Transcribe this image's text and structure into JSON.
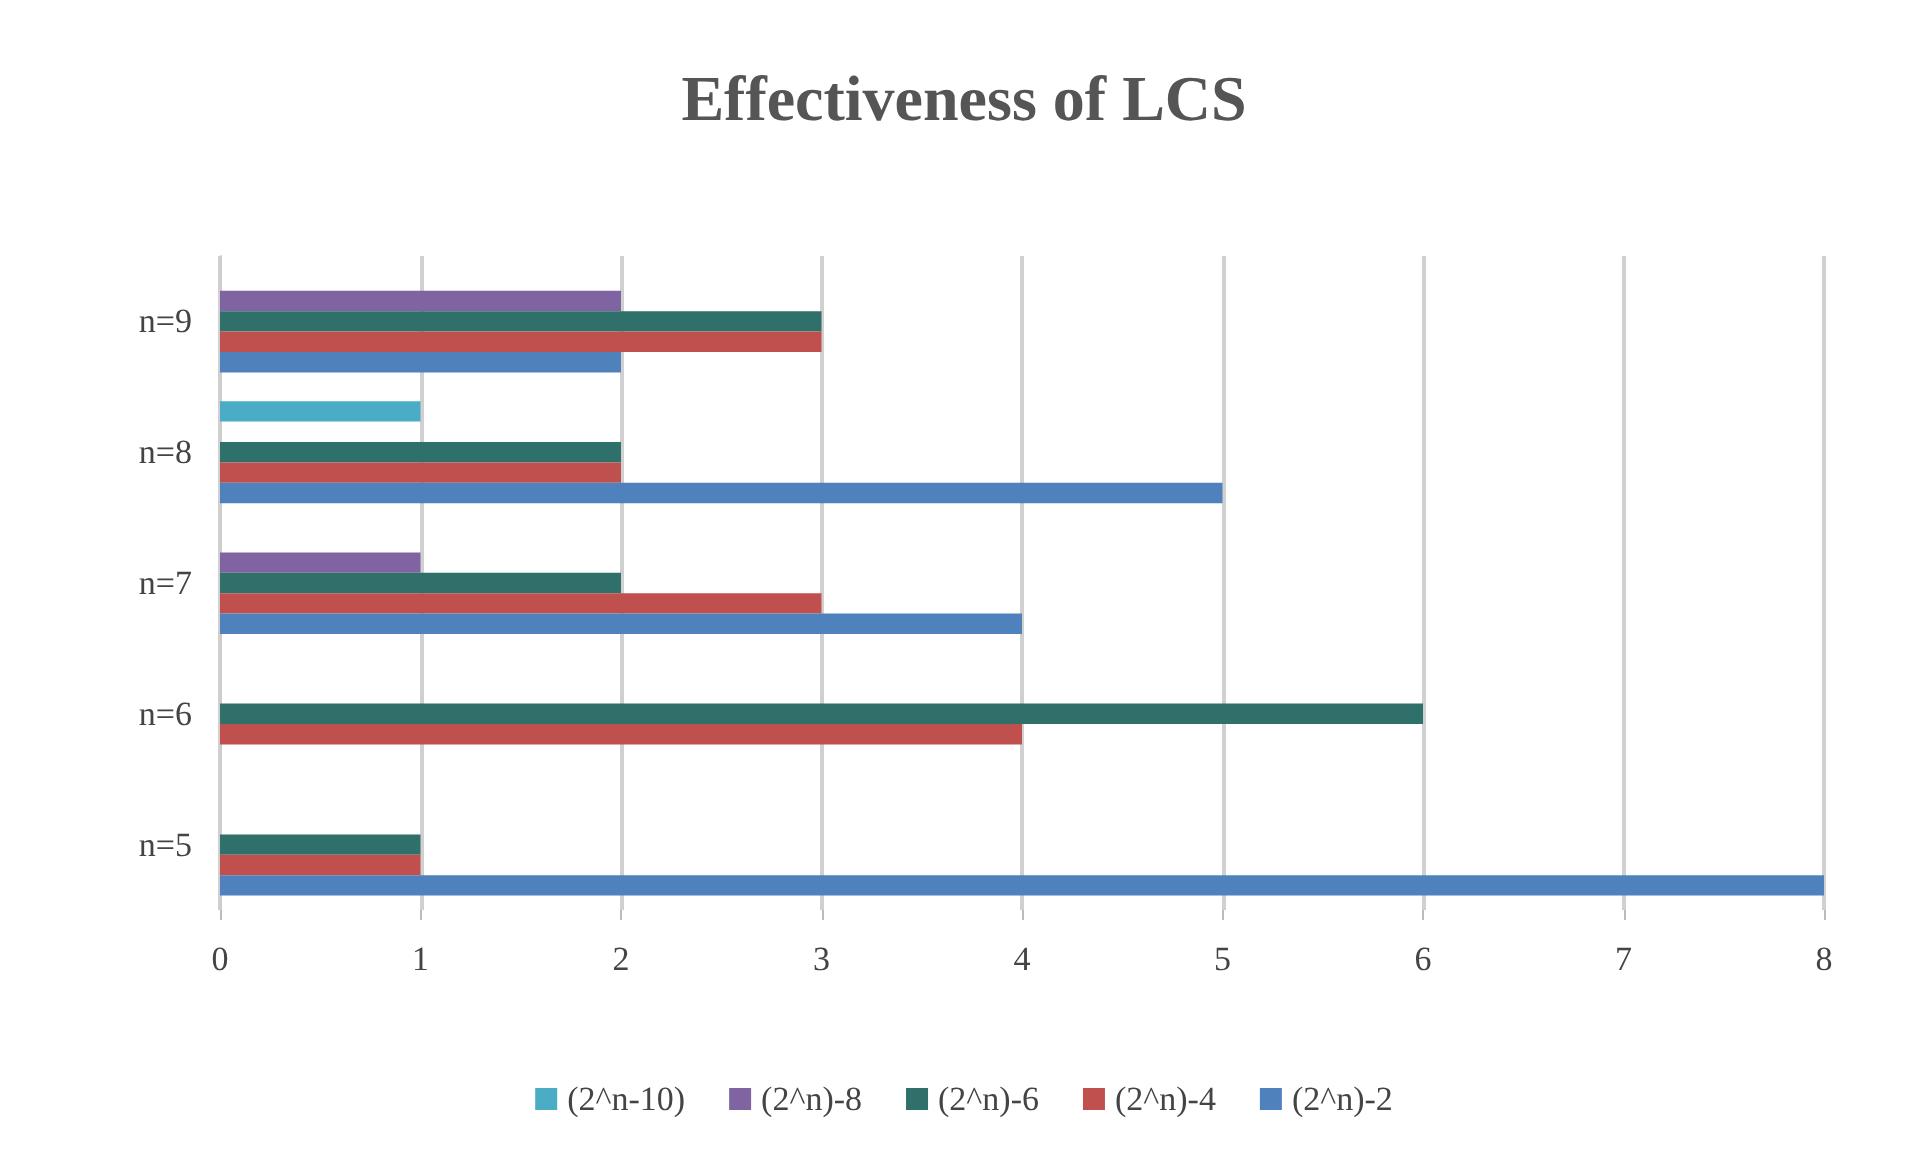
{
  "chart_data": {
    "type": "bar",
    "orientation": "horizontal",
    "title": "Effectiveness of LCS",
    "categories": [
      "n=9",
      "n=8",
      "n=7",
      "n=6",
      "n=5"
    ],
    "series": [
      {
        "name": "(2^n-10)",
        "color": "#4bacc6",
        "values": [
          0,
          1,
          0,
          0,
          0
        ]
      },
      {
        "name": "(2^n)-8",
        "color": "#8064a2",
        "values": [
          2,
          0,
          1,
          0,
          0
        ]
      },
      {
        "name": "(2^n)-6",
        "color": "#2f706a",
        "values": [
          3,
          2,
          2,
          6,
          1
        ]
      },
      {
        "name": "(2^n)-4",
        "color": "#c0504d",
        "values": [
          3,
          2,
          3,
          4,
          1
        ]
      },
      {
        "name": "(2^n)-2",
        "color": "#4f81bd",
        "values": [
          2,
          5,
          4,
          0,
          8
        ]
      }
    ],
    "xlim": [
      0,
      8
    ],
    "xticks": [
      0,
      1,
      2,
      3,
      4,
      5,
      6,
      7,
      8
    ],
    "grid": "x",
    "legend": "bottom"
  }
}
